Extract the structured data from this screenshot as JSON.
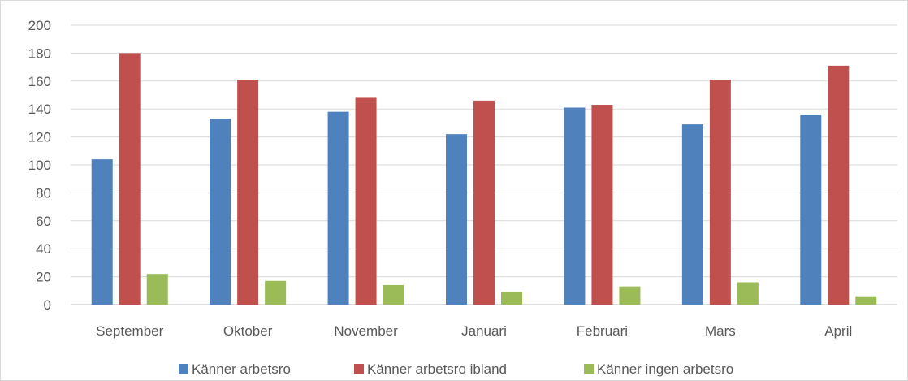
{
  "chart_data": {
    "type": "bar",
    "title": "",
    "xlabel": "",
    "ylabel": "",
    "categories": [
      "September",
      "Oktober",
      "November",
      "Januari",
      "Februari",
      "Mars",
      "April"
    ],
    "series": [
      {
        "name": "Känner arbetsro",
        "color": "#4f81bd",
        "values": [
          104,
          133,
          138,
          122,
          141,
          129,
          136
        ]
      },
      {
        "name": "Känner arbetsro ibland",
        "color": "#c0504d",
        "values": [
          180,
          161,
          148,
          146,
          143,
          161,
          171
        ]
      },
      {
        "name": "Känner ingen arbetsro",
        "color": "#9bbb59",
        "values": [
          22,
          17,
          14,
          9,
          13,
          16,
          6
        ]
      }
    ],
    "ylim": [
      0,
      200
    ],
    "yticks": [
      0,
      20,
      40,
      60,
      80,
      100,
      120,
      140,
      160,
      180,
      200
    ],
    "grid": true,
    "legend_position": "bottom"
  }
}
